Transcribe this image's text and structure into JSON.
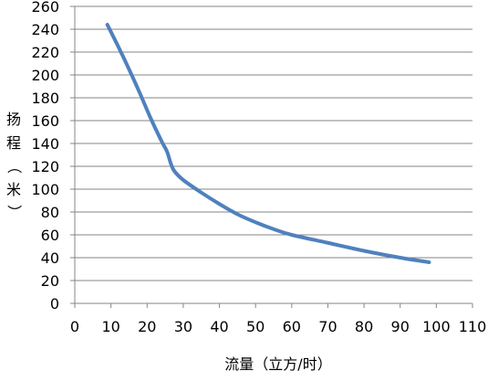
{
  "chart_data": {
    "type": "line",
    "title": "",
    "xlabel": "流量（立方/时）",
    "ylabel_chars": [
      "扬",
      "程",
      "（",
      "米",
      "）"
    ],
    "xlim": [
      0,
      110
    ],
    "ylim": [
      0,
      260
    ],
    "x_ticks": [
      "0",
      "10",
      "20",
      "30",
      "40",
      "50",
      "60",
      "70",
      "80",
      "90",
      "100",
      "110"
    ],
    "y_ticks": [
      "0",
      "20",
      "40",
      "60",
      "80",
      "100",
      "120",
      "140",
      "160",
      "180",
      "200",
      "220",
      "240",
      "260"
    ],
    "grid": "horizontal",
    "legend": "none",
    "series": [
      {
        "color": "#4F81BD",
        "points": [
          [
            9,
            244
          ],
          [
            12,
            225
          ],
          [
            15,
            205
          ],
          [
            18,
            184
          ],
          [
            21,
            162
          ],
          [
            24,
            142
          ],
          [
            25.5,
            133
          ],
          [
            26.5,
            123
          ],
          [
            27.5,
            116
          ],
          [
            30,
            108
          ],
          [
            35,
            97
          ],
          [
            40,
            87
          ],
          [
            45,
            78
          ],
          [
            50,
            71
          ],
          [
            55,
            65
          ],
          [
            60,
            60
          ],
          [
            70,
            53
          ],
          [
            80,
            46
          ],
          [
            90,
            40
          ],
          [
            98,
            36
          ]
        ]
      }
    ]
  },
  "colors": {
    "gridline": "#868686",
    "axis": "#868686",
    "series": "#4F81BD"
  }
}
